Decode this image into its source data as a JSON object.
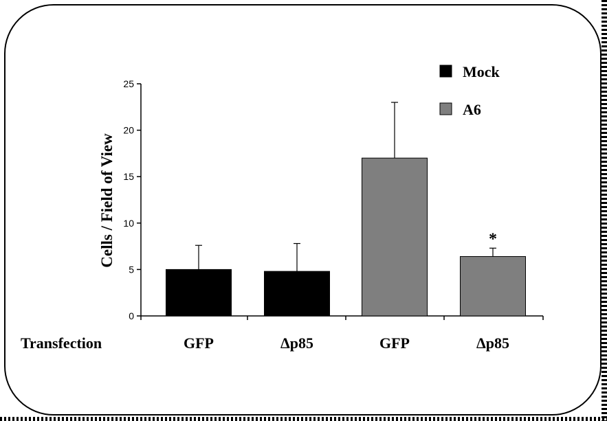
{
  "chart_data": {
    "type": "bar",
    "row_label": "Transfection",
    "categories": [
      "GFP",
      "Δp85",
      "GFP",
      "Δp85"
    ],
    "values": [
      5.0,
      4.8,
      17.0,
      6.4
    ],
    "errors": [
      2.6,
      3.0,
      6.0,
      0.9
    ],
    "bar_groups": [
      "Mock",
      "Mock",
      "A6",
      "A6"
    ],
    "ylabel": "Cells / Field of View",
    "ylim": [
      0,
      25
    ],
    "yticks": [
      0,
      5,
      10,
      15,
      20,
      25
    ],
    "grid": false,
    "legend": {
      "placement": "top-right",
      "entries": [
        {
          "name": "Mock",
          "color": "#000000"
        },
        {
          "name": "A6",
          "color": "#7f7f7f"
        }
      ]
    },
    "annotations": [
      {
        "category_index": 3,
        "text": "*"
      }
    ]
  }
}
